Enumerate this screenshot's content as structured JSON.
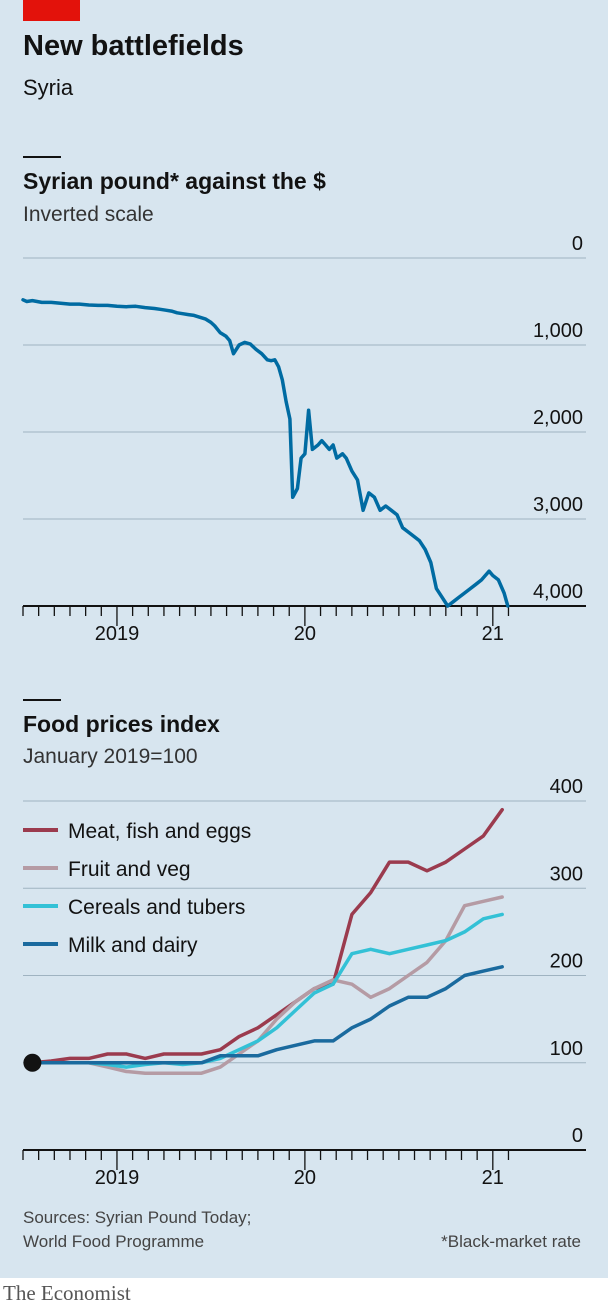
{
  "header": {
    "title": "New battlefields",
    "subtitle": "Syria"
  },
  "footer": {
    "sources_line1": "Sources: Syrian Pound Today;",
    "sources_line2": "World Food Programme",
    "note": "*Black-market rate",
    "brand": "The Economist"
  },
  "colors": {
    "accent_red": "#e3120b",
    "panel_bg": "#d7e5ef",
    "pound_line": "#006ba2",
    "meat": "#9b3b4e",
    "fruit": "#b59ba4",
    "cereals": "#33c1d6",
    "milk": "#1a6a9e"
  },
  "chart_data": [
    {
      "type": "line",
      "title": "Syrian pound* against the $",
      "subtitle": "Inverted scale",
      "y_inverted": true,
      "ylim": [
        0,
        4000
      ],
      "y_ticks": [
        "0",
        "1,000",
        "2,000",
        "3,000",
        "4,000"
      ],
      "y_tick_values": [
        0,
        1000,
        2000,
        3000,
        4000
      ],
      "x_range": [
        2018.5,
        2021.15
      ],
      "x_ticks": [
        {
          "label": "2019",
          "value": 2019
        },
        {
          "label": "20",
          "value": 2020
        },
        {
          "label": "21",
          "value": 2021
        }
      ],
      "grid": true,
      "series": [
        {
          "x": [
            2018.5,
            2018.52,
            2018.55,
            2018.6,
            2018.65,
            2018.7,
            2018.75,
            2018.8,
            2018.85,
            2018.9,
            2018.95,
            2019.0,
            2019.05,
            2019.1,
            2019.15,
            2019.2,
            2019.23,
            2019.26,
            2019.29,
            2019.32,
            2019.35,
            2019.38,
            2019.41,
            2019.44,
            2019.47,
            2019.5,
            2019.52,
            2019.55,
            2019.58,
            2019.6,
            2019.62,
            2019.65,
            2019.68,
            2019.71,
            2019.74,
            2019.77,
            2019.8,
            2019.82,
            2019.84,
            2019.86,
            2019.88,
            2019.9,
            2019.92,
            2019.935,
            2019.96,
            2019.98,
            2020.0,
            2020.02,
            2020.04,
            2020.07,
            2020.09,
            2020.11,
            2020.13,
            2020.15,
            2020.17,
            2020.2,
            2020.22,
            2020.25,
            2020.28,
            2020.31,
            2020.34,
            2020.37,
            2020.4,
            2020.43,
            2020.46,
            2020.49,
            2020.52,
            2020.55,
            2020.58,
            2020.61,
            2020.64,
            2020.67,
            2020.7,
            2020.73,
            2020.76,
            2020.79,
            2020.82,
            2020.85,
            2020.88,
            2020.91,
            2020.94,
            2020.96,
            2020.98,
            2021.0,
            2021.03,
            2021.06,
            2021.08
          ],
          "values": [
            480,
            500,
            490,
            510,
            510,
            520,
            530,
            530,
            540,
            545,
            545,
            555,
            560,
            555,
            570,
            580,
            590,
            600,
            610,
            630,
            640,
            650,
            660,
            680,
            700,
            740,
            780,
            860,
            900,
            950,
            1100,
            1000,
            970,
            990,
            1050,
            1100,
            1170,
            1180,
            1170,
            1250,
            1400,
            1650,
            1850,
            2750,
            2650,
            2300,
            2250,
            1750,
            2200,
            2150,
            2100,
            2150,
            2200,
            2150,
            2300,
            2250,
            2300,
            2450,
            2550,
            2900,
            2700,
            2750,
            2900,
            2850,
            2900,
            2950,
            3100,
            3150,
            3200,
            3250,
            3350,
            3500,
            3800,
            3900,
            4000,
            3950,
            3900,
            3850,
            3800,
            3750,
            3700,
            3650,
            3600,
            3650,
            3700,
            3850,
            4000
          ]
        }
      ]
    },
    {
      "type": "line",
      "title": "Food prices index",
      "subtitle": "January 2019=100",
      "ylim": [
        0,
        400
      ],
      "y_ticks": [
        "0",
        "100",
        "200",
        "300",
        "400"
      ],
      "y_tick_values": [
        0,
        100,
        200,
        300,
        400
      ],
      "x_range": [
        2018.5,
        2021.15
      ],
      "x_ticks": [
        {
          "label": "2019",
          "value": 2019
        },
        {
          "label": "20",
          "value": 2020
        },
        {
          "label": "21",
          "value": 2021
        }
      ],
      "grid": true,
      "legend": "top-left",
      "start_marker": {
        "x": 2018.55,
        "y": 100
      },
      "series": [
        {
          "name": "Meat, fish and eggs",
          "x": [
            2018.55,
            2018.65,
            2018.75,
            2018.85,
            2018.95,
            2019.05,
            2019.15,
            2019.25,
            2019.35,
            2019.45,
            2019.55,
            2019.65,
            2019.75,
            2019.85,
            2019.95,
            2020.05,
            2020.15,
            2020.25,
            2020.35,
            2020.45,
            2020.55,
            2020.65,
            2020.75,
            2020.85,
            2020.95,
            2021.05
          ],
          "values": [
            100,
            102,
            105,
            105,
            110,
            110,
            105,
            110,
            110,
            110,
            115,
            130,
            140,
            155,
            170,
            185,
            190,
            270,
            295,
            330,
            330,
            320,
            330,
            345,
            360,
            390
          ]
        },
        {
          "name": "Fruit and veg",
          "x": [
            2018.55,
            2018.65,
            2018.75,
            2018.85,
            2018.95,
            2019.05,
            2019.15,
            2019.25,
            2019.35,
            2019.45,
            2019.55,
            2019.65,
            2019.75,
            2019.85,
            2019.95,
            2020.05,
            2020.15,
            2020.25,
            2020.35,
            2020.45,
            2020.55,
            2020.65,
            2020.75,
            2020.85,
            2020.95,
            2021.05
          ],
          "values": [
            100,
            100,
            100,
            100,
            95,
            90,
            88,
            88,
            88,
            88,
            95,
            110,
            125,
            150,
            170,
            185,
            195,
            190,
            175,
            185,
            200,
            215,
            240,
            280,
            285,
            290
          ]
        },
        {
          "name": "Cereals and tubers",
          "x": [
            2018.55,
            2018.65,
            2018.75,
            2018.85,
            2018.95,
            2019.05,
            2019.15,
            2019.25,
            2019.35,
            2019.45,
            2019.55,
            2019.65,
            2019.75,
            2019.85,
            2019.95,
            2020.05,
            2020.15,
            2020.25,
            2020.35,
            2020.45,
            2020.55,
            2020.65,
            2020.75,
            2020.85,
            2020.95,
            2021.05
          ],
          "values": [
            100,
            100,
            100,
            100,
            98,
            95,
            98,
            100,
            98,
            100,
            105,
            115,
            125,
            140,
            160,
            180,
            190,
            225,
            230,
            225,
            230,
            235,
            240,
            250,
            265,
            270
          ]
        },
        {
          "name": "Milk and dairy",
          "x": [
            2018.55,
            2018.65,
            2018.75,
            2018.85,
            2018.95,
            2019.05,
            2019.15,
            2019.25,
            2019.35,
            2019.45,
            2019.55,
            2019.65,
            2019.75,
            2019.85,
            2019.95,
            2020.05,
            2020.15,
            2020.25,
            2020.35,
            2020.45,
            2020.55,
            2020.65,
            2020.75,
            2020.85,
            2020.95,
            2021.05
          ],
          "values": [
            100,
            100,
            100,
            100,
            100,
            100,
            100,
            100,
            100,
            100,
            108,
            108,
            108,
            115,
            120,
            125,
            125,
            140,
            150,
            165,
            175,
            175,
            185,
            200,
            205,
            210
          ]
        }
      ]
    }
  ]
}
